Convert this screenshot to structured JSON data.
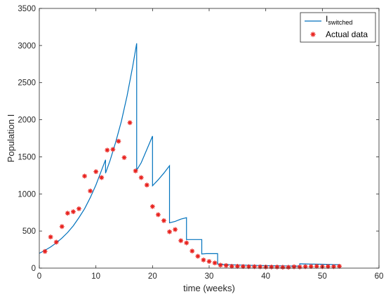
{
  "chart_data": {
    "type": "line",
    "xlabel": "time (weeks)",
    "ylabel": "Population I",
    "xlim": [
      0,
      60
    ],
    "ylim": [
      0,
      3500
    ],
    "xticks": [
      0,
      10,
      20,
      30,
      40,
      50,
      60
    ],
    "yticks": [
      0,
      500,
      1000,
      1500,
      2000,
      2500,
      3000,
      3500
    ],
    "grid": false,
    "legend_position": "top-right",
    "series": [
      {
        "name": "I",
        "name_subscript": "switched",
        "kind": "line",
        "color": "#0072BD",
        "points": [
          [
            0,
            200
          ],
          [
            1,
            240
          ],
          [
            2,
            285
          ],
          [
            3,
            340
          ],
          [
            4,
            405
          ],
          [
            5,
            480
          ],
          [
            6,
            570
          ],
          [
            7,
            680
          ],
          [
            8,
            800
          ],
          [
            9,
            950
          ],
          [
            10,
            1120
          ],
          [
            11,
            1320
          ],
          [
            11.7,
            1460
          ],
          [
            11.7,
            1280
          ],
          [
            12.5,
            1450
          ],
          [
            13.5,
            1700
          ],
          [
            14.5,
            1980
          ],
          [
            15.5,
            2320
          ],
          [
            16.5,
            2720
          ],
          [
            17.2,
            3030
          ],
          [
            17.2,
            1320
          ],
          [
            18,
            1420
          ],
          [
            19,
            1600
          ],
          [
            20,
            1780
          ],
          [
            20,
            1110
          ],
          [
            21,
            1190
          ],
          [
            22,
            1280
          ],
          [
            23,
            1380
          ],
          [
            23,
            610
          ],
          [
            24,
            630
          ],
          [
            25,
            660
          ],
          [
            26,
            680
          ],
          [
            26,
            385
          ],
          [
            27,
            385
          ],
          [
            28,
            385
          ],
          [
            28.7,
            385
          ],
          [
            28.7,
            190
          ],
          [
            29.5,
            195
          ],
          [
            30.5,
            195
          ],
          [
            31.5,
            195
          ],
          [
            31.5,
            55
          ],
          [
            33,
            48
          ],
          [
            35,
            42
          ],
          [
            37,
            38
          ],
          [
            39,
            35
          ],
          [
            41,
            32
          ],
          [
            43,
            30
          ],
          [
            45,
            28
          ],
          [
            46,
            28
          ],
          [
            46,
            58
          ],
          [
            48,
            55
          ],
          [
            50,
            52
          ],
          [
            52,
            48
          ],
          [
            53,
            46
          ]
        ]
      },
      {
        "name": "Actual data",
        "kind": "scatter",
        "color": "#e8201c",
        "points": [
          [
            1,
            225
          ],
          [
            2,
            420
          ],
          [
            3,
            350
          ],
          [
            4,
            560
          ],
          [
            5,
            740
          ],
          [
            6,
            760
          ],
          [
            7,
            800
          ],
          [
            8,
            1240
          ],
          [
            9,
            1040
          ],
          [
            10,
            1300
          ],
          [
            11,
            1220
          ],
          [
            12,
            1590
          ],
          [
            13,
            1600
          ],
          [
            14,
            1710
          ],
          [
            15,
            1490
          ],
          [
            16,
            1960
          ],
          [
            17,
            1310
          ],
          [
            18,
            1220
          ],
          [
            19,
            1120
          ],
          [
            20,
            830
          ],
          [
            21,
            720
          ],
          [
            22,
            640
          ],
          [
            23,
            490
          ],
          [
            24,
            520
          ],
          [
            25,
            370
          ],
          [
            26,
            340
          ],
          [
            27,
            230
          ],
          [
            28,
            160
          ],
          [
            29,
            110
          ],
          [
            30,
            90
          ],
          [
            31,
            70
          ],
          [
            32,
            40
          ],
          [
            33,
            35
          ],
          [
            34,
            25
          ],
          [
            35,
            25
          ],
          [
            36,
            22
          ],
          [
            37,
            20
          ],
          [
            38,
            20
          ],
          [
            39,
            18
          ],
          [
            40,
            15
          ],
          [
            41,
            15
          ],
          [
            42,
            15
          ],
          [
            43,
            12
          ],
          [
            44,
            12
          ],
          [
            45,
            18
          ],
          [
            46,
            15
          ],
          [
            47,
            20
          ],
          [
            48,
            22
          ],
          [
            49,
            25
          ],
          [
            50,
            20
          ],
          [
            51,
            22
          ],
          [
            52,
            20
          ],
          [
            53,
            25
          ]
        ]
      }
    ]
  }
}
